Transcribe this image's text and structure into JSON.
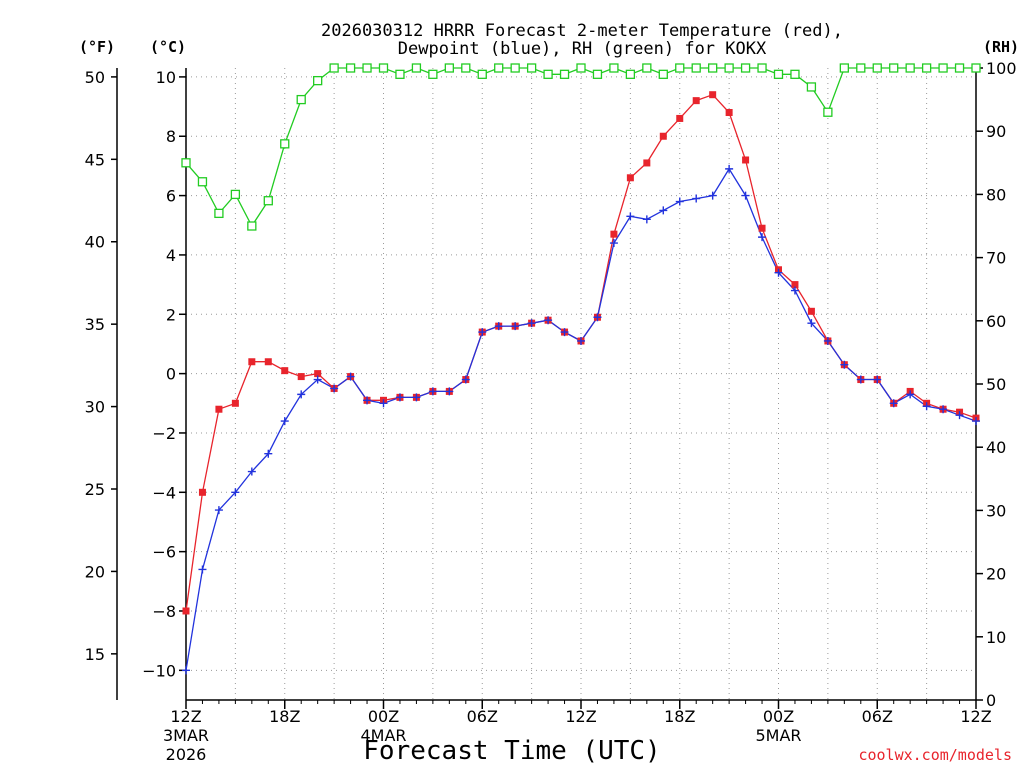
{
  "chart_data": {
    "type": "line",
    "title_line1": "2026030312 HRRR Forecast 2-meter Temperature (red),",
    "title_line2": "Dewpoint (blue), RH (green) for KOKX",
    "xlabel": "Forecast Time (UTC)",
    "watermark": "coolwx.com/models",
    "unit_labels": {
      "fahrenheit": "(°F)",
      "celsius": "(°C)",
      "rh": "(RH)"
    },
    "x_hours": {
      "min": 0,
      "max": 48,
      "step": 1
    },
    "x_ticks": [
      {
        "hour": 0,
        "label": "12Z",
        "sub1": "3MAR",
        "sub2": "2026"
      },
      {
        "hour": 6,
        "label": "18Z",
        "sub1": "",
        "sub2": ""
      },
      {
        "hour": 12,
        "label": "00Z",
        "sub1": "4MAR",
        "sub2": ""
      },
      {
        "hour": 18,
        "label": "06Z",
        "sub1": "",
        "sub2": ""
      },
      {
        "hour": 24,
        "label": "12Z",
        "sub1": "",
        "sub2": ""
      },
      {
        "hour": 30,
        "label": "18Z",
        "sub1": "",
        "sub2": ""
      },
      {
        "hour": 36,
        "label": "00Z",
        "sub1": "5MAR",
        "sub2": ""
      },
      {
        "hour": 42,
        "label": "06Z",
        "sub1": "",
        "sub2": ""
      },
      {
        "hour": 48,
        "label": "12Z",
        "sub1": "",
        "sub2": ""
      }
    ],
    "celsius_axis": {
      "min": -11,
      "max": 10.3,
      "ticks": [
        -10,
        -8,
        -6,
        -4,
        -2,
        0,
        2,
        4,
        6,
        8,
        10
      ],
      "tick_labels": [
        "−10",
        "−8",
        "−6",
        "−4",
        "−2",
        "0",
        "2",
        "4",
        "6",
        "8",
        "10"
      ]
    },
    "fahrenheit_axis": {
      "ticks": [
        15,
        20,
        25,
        30,
        35,
        40,
        45,
        50
      ],
      "tick_labels": [
        "15",
        "20",
        "25",
        "30",
        "35",
        "40",
        "45",
        "50"
      ]
    },
    "rh_axis": {
      "min": 0,
      "max": 100,
      "ticks": [
        0,
        10,
        20,
        30,
        40,
        50,
        60,
        70,
        80,
        90,
        100
      ],
      "tick_labels": [
        "0",
        "10",
        "20",
        "30",
        "40",
        "50",
        "60",
        "70",
        "80",
        "90",
        "100"
      ]
    },
    "series": [
      {
        "name": "Temperature",
        "units": "C",
        "color": "#e8242c",
        "marker": "filled-square",
        "values": [
          -8.0,
          -4.0,
          -1.2,
          -1.0,
          0.4,
          0.4,
          0.1,
          -0.1,
          0.0,
          -0.5,
          -0.1,
          -0.9,
          -0.9,
          -0.8,
          -0.8,
          -0.6,
          -0.6,
          -0.2,
          1.4,
          1.6,
          1.6,
          1.7,
          1.8,
          1.4,
          1.1,
          1.9,
          4.7,
          6.6,
          7.1,
          8.0,
          8.6,
          9.2,
          9.4,
          8.8,
          7.2,
          4.9,
          3.5,
          3.0,
          2.1,
          1.1,
          0.3,
          -0.2,
          -0.2,
          -1.0,
          -0.6,
          -1.0,
          -1.2,
          -1.3,
          -1.5
        ]
      },
      {
        "name": "Dewpoint",
        "units": "C",
        "color": "#2233dd",
        "marker": "plus",
        "values": [
          -10.0,
          -6.6,
          -4.6,
          -4.0,
          -3.3,
          -2.7,
          -1.6,
          -0.7,
          -0.2,
          -0.5,
          -0.1,
          -0.9,
          -1.0,
          -0.8,
          -0.8,
          -0.6,
          -0.6,
          -0.2,
          1.4,
          1.6,
          1.6,
          1.7,
          1.8,
          1.4,
          1.1,
          1.9,
          4.4,
          5.3,
          5.2,
          5.5,
          5.8,
          5.9,
          6.0,
          6.9,
          6.0,
          4.6,
          3.4,
          2.8,
          1.7,
          1.1,
          0.3,
          -0.2,
          -0.2,
          -1.0,
          -0.7,
          -1.1,
          -1.2,
          -1.4,
          -1.6
        ]
      },
      {
        "name": "RH",
        "units": "%",
        "color": "#22cc22",
        "marker": "open-square",
        "values": [
          85,
          82,
          77,
          80,
          75,
          79,
          88,
          95,
          98,
          100,
          100,
          100,
          100,
          99,
          100,
          99,
          100,
          100,
          99,
          100,
          100,
          100,
          99,
          99,
          100,
          99,
          100,
          99,
          100,
          99,
          100,
          100,
          100,
          100,
          100,
          100,
          99,
          99,
          97,
          93,
          100,
          100,
          100,
          100,
          100,
          100,
          100,
          100,
          100
        ]
      }
    ]
  }
}
